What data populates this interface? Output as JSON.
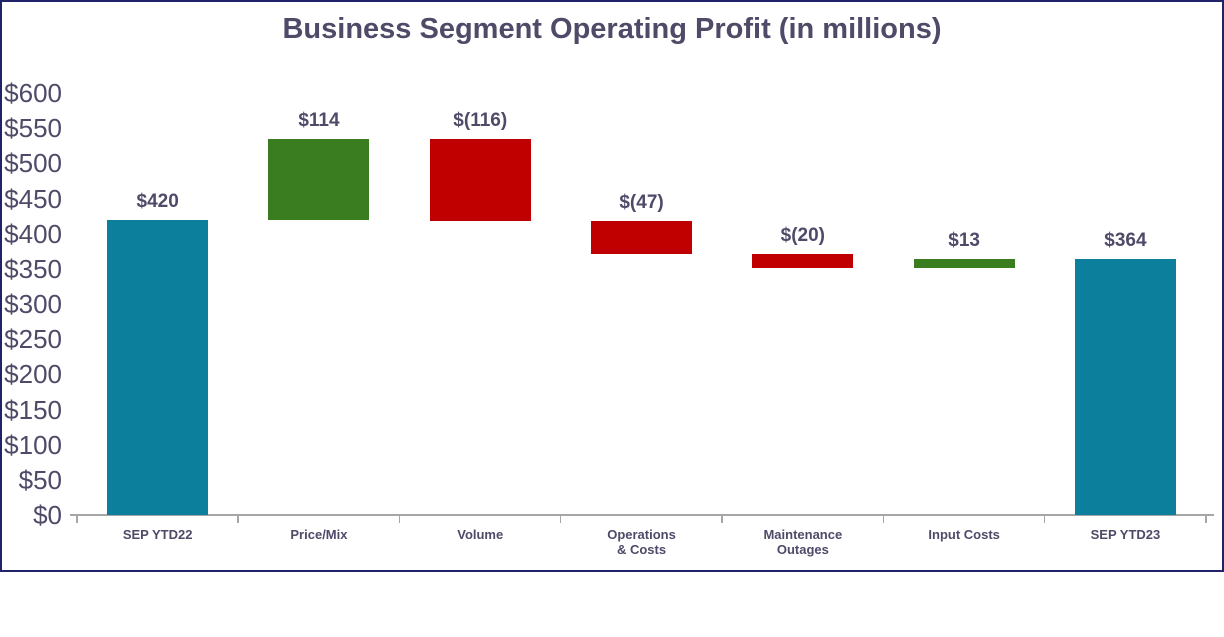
{
  "chart_data": {
    "type": "bar",
    "subtype": "waterfall",
    "title": "Business Segment Operating Profit (in millions)",
    "categories": [
      "SEP YTD22",
      "Price/Mix",
      "Volume",
      "Operations\n& Costs",
      "Maintenance\nOutages",
      "Input Costs",
      "SEP YTD23"
    ],
    "bars": [
      {
        "category": "SEP YTD22",
        "value_label": "$420",
        "start": 0,
        "end": 420,
        "kind": "total"
      },
      {
        "category": "Price/Mix",
        "value_label": "$114",
        "start": 420,
        "end": 534,
        "kind": "increase"
      },
      {
        "category": "Volume",
        "value_label": "$(116)",
        "start": 534,
        "end": 418,
        "kind": "decrease"
      },
      {
        "category": "Operations & Costs",
        "value_label": "$(47)",
        "start": 418,
        "end": 371,
        "kind": "decrease"
      },
      {
        "category": "Maintenance Outages",
        "value_label": "$(20)",
        "start": 371,
        "end": 351,
        "kind": "decrease"
      },
      {
        "category": "Input Costs",
        "value_label": "$13",
        "start": 351,
        "end": 364,
        "kind": "increase"
      },
      {
        "category": "SEP YTD23",
        "value_label": "$364",
        "start": 0,
        "end": 364,
        "kind": "total"
      }
    ],
    "xlabel": "",
    "ylabel": "",
    "ylim": [
      0,
      600
    ],
    "ytick_step": 50,
    "ytick_labels": [
      "$0",
      "$50",
      "$100",
      "$150",
      "$200",
      "$250",
      "$300",
      "$350",
      "$400",
      "$450",
      "$500",
      "$550",
      "$600"
    ],
    "grid": false,
    "legend": false,
    "colors": {
      "total": "#0b7f9b",
      "increase": "#3a7d21",
      "decrease": "#c00000",
      "text": "#4e4a68",
      "axis_line": "#a6a6a6",
      "frame_border": "#22226b",
      "background": "#ffffff"
    }
  }
}
